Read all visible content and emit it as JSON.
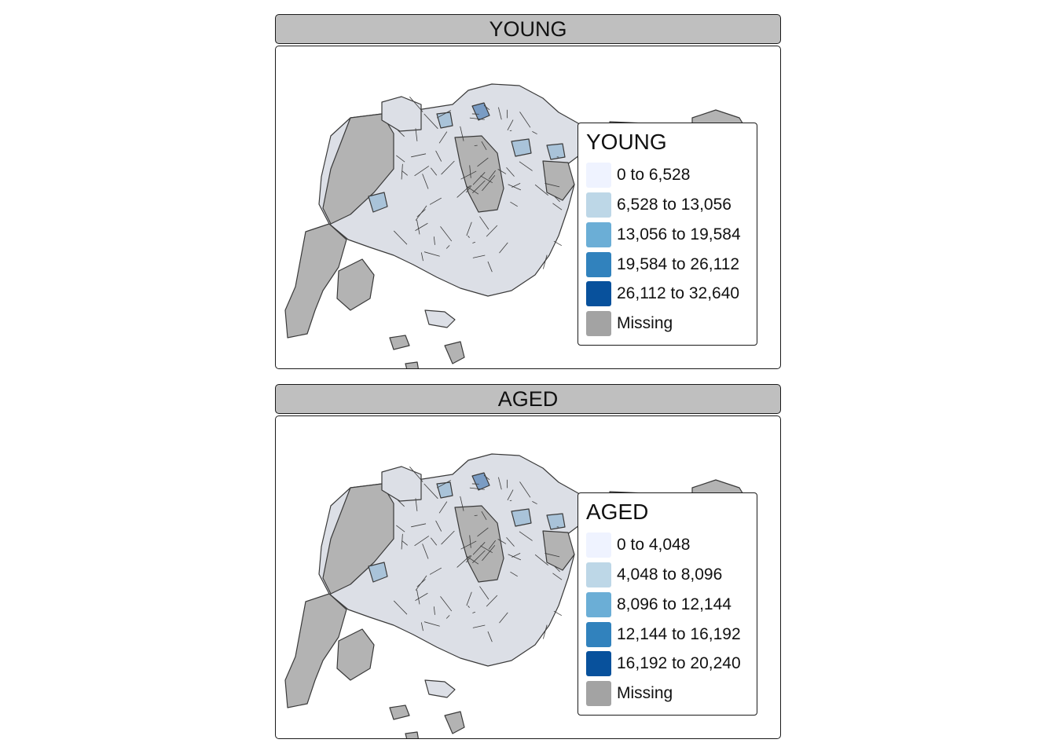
{
  "panels": [
    {
      "strip_title": "YOUNG",
      "legend": {
        "title": "YOUNG",
        "items": [
          {
            "label": "0 to 6,528",
            "color": "#eff3ff"
          },
          {
            "label": "6,528 to 13,056",
            "color": "#bdd7e7"
          },
          {
            "label": "13,056 to 19,584",
            "color": "#6baed6"
          },
          {
            "label": "19,584 to 26,112",
            "color": "#3182bd"
          },
          {
            "label": "26,112 to 32,640",
            "color": "#08519c"
          },
          {
            "label": "Missing",
            "color": "#a3a3a3"
          }
        ]
      }
    },
    {
      "strip_title": "AGED",
      "legend": {
        "title": "AGED",
        "items": [
          {
            "label": "0 to 4,048",
            "color": "#eff3ff"
          },
          {
            "label": "4,048 to 8,096",
            "color": "#bdd7e7"
          },
          {
            "label": "8,096 to 12,144",
            "color": "#6baed6"
          },
          {
            "label": "12,144 to 16,192",
            "color": "#3182bd"
          },
          {
            "label": "16,192 to 20,240",
            "color": "#08519c"
          },
          {
            "label": "Missing",
            "color": "#a3a3a3"
          }
        ]
      }
    }
  ],
  "map_colors": {
    "missing": "#b3b3b3",
    "low": "#dcdfe6",
    "mid": "#a9c3d9",
    "high": "#7a9cc4",
    "border": "#3a3a3a"
  }
}
